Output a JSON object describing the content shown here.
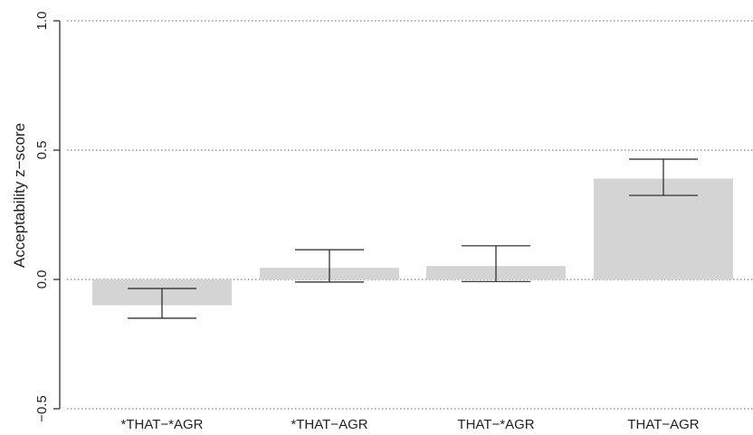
{
  "chart_data": {
    "type": "bar",
    "title": "",
    "xlabel": "",
    "ylabel": "Acceptability z−score",
    "categories": [
      "*THAT−*AGR",
      "*THAT−AGR",
      "THAT−*AGR",
      "THAT−AGR"
    ],
    "values": [
      -0.1,
      0.045,
      0.052,
      0.39
    ],
    "error_bars": [
      {
        "low": -0.15,
        "high": -0.035
      },
      {
        "low": -0.01,
        "high": 0.115
      },
      {
        "low": -0.008,
        "high": 0.13
      },
      {
        "low": 0.325,
        "high": 0.465
      }
    ],
    "ylim": [
      -0.5,
      1.0
    ],
    "yticks": [
      -0.5,
      0.0,
      0.5,
      1.0
    ],
    "ytick_labels": [
      "−0.5",
      "0.0",
      "0.5",
      "1.0"
    ],
    "grid": "horizontal dotted at y ticks",
    "bar_color": "#d4d4d4",
    "line_color": "#222222"
  }
}
